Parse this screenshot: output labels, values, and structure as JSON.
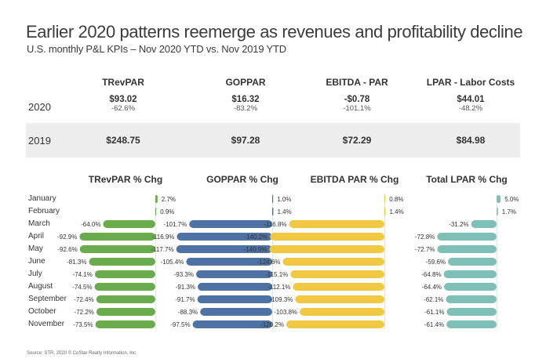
{
  "title": "Earlier 2020 patterns reemerge as revenues and profitability decline",
  "subtitle": "U.S. monthly P&L KPIs – Nov 2020 YTD vs. Nov 2019 YTD",
  "kpi_table": {
    "headers": [
      "TRevPAR",
      "GOPPAR",
      "EBITDA - PAR",
      "LPAR - Labor Costs"
    ],
    "rows": [
      {
        "label": "2020",
        "cells": [
          {
            "value": "$93.02",
            "pct": "-62.6%"
          },
          {
            "value": "$16.32",
            "pct": "-83.2%"
          },
          {
            "value": "-$0.78",
            "pct": "-101.1%"
          },
          {
            "value": "$44.01",
            "pct": "-48.2%"
          }
        ]
      },
      {
        "label": "2019",
        "cells": [
          {
            "value": "$248.75"
          },
          {
            "value": "$97.28"
          },
          {
            "value": "$72.29"
          },
          {
            "value": "$84.98"
          }
        ]
      }
    ]
  },
  "months": [
    "January",
    "February",
    "March",
    "April",
    "May",
    "June",
    "July",
    "August",
    "September",
    "October",
    "November"
  ],
  "chart_data": [
    {
      "type": "bar",
      "orientation": "horizontal",
      "title": "TRevPAR % Chg",
      "categories": [
        "January",
        "February",
        "March",
        "April",
        "May",
        "June",
        "July",
        "August",
        "September",
        "October",
        "November"
      ],
      "values": [
        2.7,
        0.9,
        -64.0,
        -92.9,
        -92.6,
        -81.3,
        -74.1,
        -74.5,
        -72.4,
        -72.2,
        -73.5
      ],
      "labels": [
        "2.7%",
        "0.9%",
        "-64.0%",
        "-92.9%",
        "-92.6%",
        "-81.3%",
        "-74.1%",
        "-74.5%",
        "-72.4%",
        "-72.2%",
        "-73.5%"
      ],
      "color": "#6aab4e"
    },
    {
      "type": "bar",
      "orientation": "horizontal",
      "title": "GOPPAR % Chg",
      "categories": [
        "January",
        "February",
        "March",
        "April",
        "May",
        "June",
        "July",
        "August",
        "September",
        "October",
        "November"
      ],
      "values": [
        1.0,
        1.4,
        -101.7,
        -116.9,
        -117.7,
        -105.4,
        -93.3,
        -91.3,
        -91.7,
        -88.3,
        -97.5
      ],
      "labels": [
        "1.0%",
        "1.4%",
        "-101.7%",
        "-116.9%",
        "-117.7%",
        "-105.4%",
        "-93.3%",
        "-91.3%",
        "-91.7%",
        "-88.3%",
        "-97.5%"
      ],
      "color": "#4e72a3"
    },
    {
      "type": "bar",
      "orientation": "horizontal",
      "title": "EBITDA PAR % Chg",
      "categories": [
        "January",
        "February",
        "March",
        "April",
        "May",
        "June",
        "July",
        "August",
        "September",
        "October",
        "November"
      ],
      "values": [
        0.8,
        1.4,
        -116.8,
        -140.2,
        -140.9,
        -124.6,
        -115.1,
        -112.1,
        -109.3,
        -103.8,
        -120.2
      ],
      "labels": [
        "0.8%",
        "1.4%",
        "-116.8%",
        "-140.2%",
        "-140.9%",
        "-124.6%",
        "-115.1%",
        "-112.1%",
        "-109.3%",
        "-103.8%",
        "-120.2%"
      ],
      "color": "#f1c842"
    },
    {
      "type": "bar",
      "orientation": "horizontal",
      "title": "Total LPAR % Chg",
      "categories": [
        "January",
        "February",
        "March",
        "April",
        "May",
        "June",
        "July",
        "August",
        "September",
        "October",
        "November"
      ],
      "values": [
        5.0,
        1.7,
        -31.2,
        -72.8,
        -72.7,
        -59.6,
        -64.8,
        -64.4,
        -62.1,
        -61.1,
        -61.4
      ],
      "labels": [
        "5.0%",
        "1.7%",
        "-31.2%",
        "-72.8%",
        "-72.7%",
        "-59.6%",
        "-64.8%",
        "-64.4%",
        "-62.1%",
        "-61.1%",
        "-61.4%"
      ],
      "color": "#7ebfb8"
    }
  ],
  "source": "Source: STR, 2020 © CoStar Realty Information, Inc."
}
